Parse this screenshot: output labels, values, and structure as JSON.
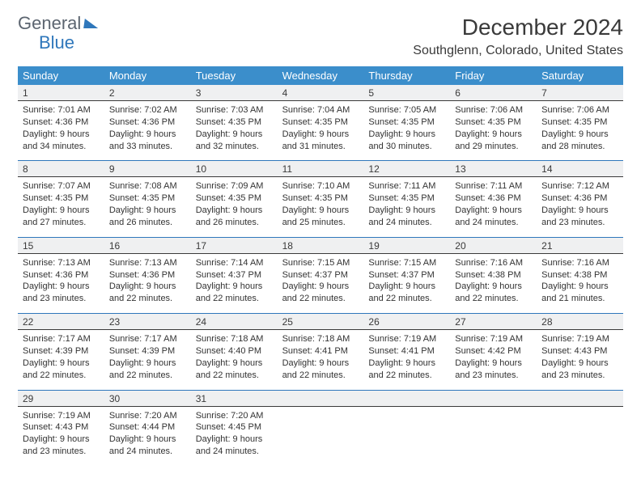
{
  "logo": {
    "word1": "General",
    "word2": "Blue"
  },
  "title": "December 2024",
  "location": "Southglenn, Colorado, United States",
  "colors": {
    "header_bg": "#3b8ecb",
    "header_text": "#ffffff",
    "daynum_bg": "#eff0f1",
    "rule_top": "#2f77bb",
    "rule_bottom": "#3a3a3a",
    "body_text": "#333333",
    "page_bg": "#ffffff",
    "logo_gray": "#5c6570",
    "logo_blue": "#2f77bb"
  },
  "typography": {
    "month_title_pt": 28,
    "location_pt": 16,
    "weekday_pt": 13,
    "daynum_pt": 12,
    "cell_pt": 11
  },
  "calendar": {
    "type": "table",
    "columns": [
      "Sunday",
      "Monday",
      "Tuesday",
      "Wednesday",
      "Thursday",
      "Friday",
      "Saturday"
    ],
    "weeks": [
      [
        {
          "n": "1",
          "sunrise": "7:01 AM",
          "sunset": "4:36 PM",
          "dl_h": "9",
          "dl_m": "34"
        },
        {
          "n": "2",
          "sunrise": "7:02 AM",
          "sunset": "4:36 PM",
          "dl_h": "9",
          "dl_m": "33"
        },
        {
          "n": "3",
          "sunrise": "7:03 AM",
          "sunset": "4:35 PM",
          "dl_h": "9",
          "dl_m": "32"
        },
        {
          "n": "4",
          "sunrise": "7:04 AM",
          "sunset": "4:35 PM",
          "dl_h": "9",
          "dl_m": "31"
        },
        {
          "n": "5",
          "sunrise": "7:05 AM",
          "sunset": "4:35 PM",
          "dl_h": "9",
          "dl_m": "30"
        },
        {
          "n": "6",
          "sunrise": "7:06 AM",
          "sunset": "4:35 PM",
          "dl_h": "9",
          "dl_m": "29"
        },
        {
          "n": "7",
          "sunrise": "7:06 AM",
          "sunset": "4:35 PM",
          "dl_h": "9",
          "dl_m": "28"
        }
      ],
      [
        {
          "n": "8",
          "sunrise": "7:07 AM",
          "sunset": "4:35 PM",
          "dl_h": "9",
          "dl_m": "27"
        },
        {
          "n": "9",
          "sunrise": "7:08 AM",
          "sunset": "4:35 PM",
          "dl_h": "9",
          "dl_m": "26"
        },
        {
          "n": "10",
          "sunrise": "7:09 AM",
          "sunset": "4:35 PM",
          "dl_h": "9",
          "dl_m": "26"
        },
        {
          "n": "11",
          "sunrise": "7:10 AM",
          "sunset": "4:35 PM",
          "dl_h": "9",
          "dl_m": "25"
        },
        {
          "n": "12",
          "sunrise": "7:11 AM",
          "sunset": "4:35 PM",
          "dl_h": "9",
          "dl_m": "24"
        },
        {
          "n": "13",
          "sunrise": "7:11 AM",
          "sunset": "4:36 PM",
          "dl_h": "9",
          "dl_m": "24"
        },
        {
          "n": "14",
          "sunrise": "7:12 AM",
          "sunset": "4:36 PM",
          "dl_h": "9",
          "dl_m": "23"
        }
      ],
      [
        {
          "n": "15",
          "sunrise": "7:13 AM",
          "sunset": "4:36 PM",
          "dl_h": "9",
          "dl_m": "23"
        },
        {
          "n": "16",
          "sunrise": "7:13 AM",
          "sunset": "4:36 PM",
          "dl_h": "9",
          "dl_m": "22"
        },
        {
          "n": "17",
          "sunrise": "7:14 AM",
          "sunset": "4:37 PM",
          "dl_h": "9",
          "dl_m": "22"
        },
        {
          "n": "18",
          "sunrise": "7:15 AM",
          "sunset": "4:37 PM",
          "dl_h": "9",
          "dl_m": "22"
        },
        {
          "n": "19",
          "sunrise": "7:15 AM",
          "sunset": "4:37 PM",
          "dl_h": "9",
          "dl_m": "22"
        },
        {
          "n": "20",
          "sunrise": "7:16 AM",
          "sunset": "4:38 PM",
          "dl_h": "9",
          "dl_m": "22"
        },
        {
          "n": "21",
          "sunrise": "7:16 AM",
          "sunset": "4:38 PM",
          "dl_h": "9",
          "dl_m": "21"
        }
      ],
      [
        {
          "n": "22",
          "sunrise": "7:17 AM",
          "sunset": "4:39 PM",
          "dl_h": "9",
          "dl_m": "22"
        },
        {
          "n": "23",
          "sunrise": "7:17 AM",
          "sunset": "4:39 PM",
          "dl_h": "9",
          "dl_m": "22"
        },
        {
          "n": "24",
          "sunrise": "7:18 AM",
          "sunset": "4:40 PM",
          "dl_h": "9",
          "dl_m": "22"
        },
        {
          "n": "25",
          "sunrise": "7:18 AM",
          "sunset": "4:41 PM",
          "dl_h": "9",
          "dl_m": "22"
        },
        {
          "n": "26",
          "sunrise": "7:19 AM",
          "sunset": "4:41 PM",
          "dl_h": "9",
          "dl_m": "22"
        },
        {
          "n": "27",
          "sunrise": "7:19 AM",
          "sunset": "4:42 PM",
          "dl_h": "9",
          "dl_m": "23"
        },
        {
          "n": "28",
          "sunrise": "7:19 AM",
          "sunset": "4:43 PM",
          "dl_h": "9",
          "dl_m": "23"
        }
      ],
      [
        {
          "n": "29",
          "sunrise": "7:19 AM",
          "sunset": "4:43 PM",
          "dl_h": "9",
          "dl_m": "23"
        },
        {
          "n": "30",
          "sunrise": "7:20 AM",
          "sunset": "4:44 PM",
          "dl_h": "9",
          "dl_m": "24"
        },
        {
          "n": "31",
          "sunrise": "7:20 AM",
          "sunset": "4:45 PM",
          "dl_h": "9",
          "dl_m": "24"
        },
        null,
        null,
        null,
        null
      ]
    ]
  },
  "labels": {
    "sunrise": "Sunrise:",
    "sunset": "Sunset:",
    "daylight": "Daylight:",
    "hours": "hours",
    "and": "and",
    "minutes": "minutes."
  }
}
